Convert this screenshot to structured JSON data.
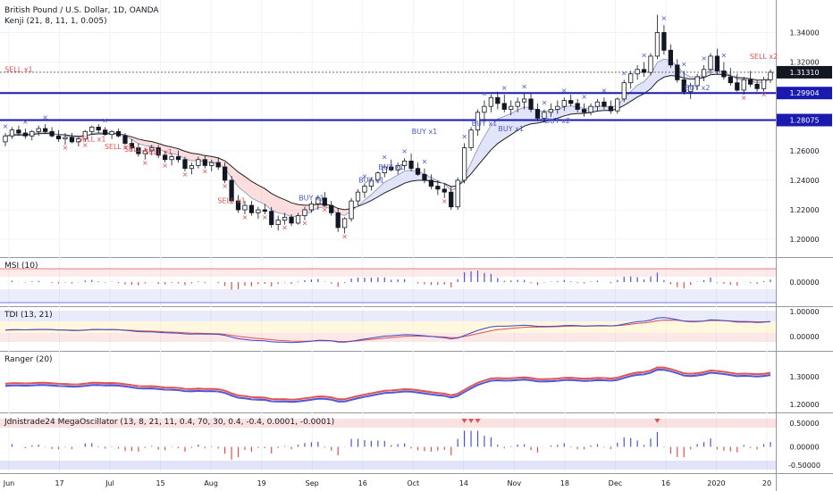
{
  "chart_data": {
    "type": "candlestick-with-indicators",
    "title": "British Pound / U.S. Dollar, 1D, OANDA",
    "subtitle": "Kenji (21, 8, 11, 1, 0.005)",
    "x_ticks": [
      "Jun",
      "17",
      "Jul",
      "15",
      "Aug",
      "19",
      "Sep",
      "16",
      "Oct",
      "14",
      "Nov",
      "18",
      "Dec",
      "16",
      "2020",
      "20"
    ],
    "price_axis": {
      "ticks": [
        "1.34000",
        "1.32000",
        "1.30000",
        "1.28000",
        "1.26000",
        "1.24000",
        "1.22000",
        "1.20000"
      ],
      "ylim": [
        1.188,
        1.362
      ]
    },
    "last_price": "1.31310",
    "levels": [
      "1.29904",
      "1.28075"
    ],
    "signals": [
      {
        "text": "SELL x1"
      },
      {
        "text": "SELL x1"
      },
      {
        "text": "SELL x1"
      },
      {
        "text": "SELL x1"
      },
      {
        "text": "SELL x1"
      },
      {
        "text": "SELL x1"
      },
      {
        "text": "BUY x1"
      },
      {
        "text": "BUY x1"
      },
      {
        "text": "BUY x1"
      },
      {
        "text": "BUY x1"
      },
      {
        "text": "BUY x1"
      },
      {
        "text": "BUY x1"
      },
      {
        "text": "BUY x2"
      },
      {
        "text": "BUY x2"
      },
      {
        "text": "SELL x2"
      }
    ],
    "ohlc": [
      [
        1.266,
        1.272,
        1.263,
        1.27
      ],
      [
        1.27,
        1.276,
        1.268,
        1.274
      ],
      [
        1.274,
        1.277,
        1.27,
        1.272
      ],
      [
        1.272,
        1.275,
        1.268,
        1.27
      ],
      [
        1.27,
        1.274,
        1.267,
        1.273
      ],
      [
        1.273,
        1.277,
        1.27,
        1.275
      ],
      [
        1.275,
        1.278,
        1.272,
        1.273
      ],
      [
        1.273,
        1.276,
        1.269,
        1.27
      ],
      [
        1.27,
        1.274,
        1.266,
        1.268
      ],
      [
        1.268,
        1.272,
        1.264,
        1.269
      ],
      [
        1.269,
        1.272,
        1.265,
        1.266
      ],
      [
        1.266,
        1.27,
        1.263,
        1.268
      ],
      [
        1.268,
        1.274,
        1.266,
        1.273
      ],
      [
        1.273,
        1.277,
        1.271,
        1.276
      ],
      [
        1.276,
        1.278,
        1.272,
        1.274
      ],
      [
        1.274,
        1.276,
        1.27,
        1.271
      ],
      [
        1.271,
        1.274,
        1.268,
        1.273
      ],
      [
        1.273,
        1.275,
        1.269,
        1.27
      ],
      [
        1.27,
        1.272,
        1.264,
        1.265
      ],
      [
        1.265,
        1.268,
        1.26,
        1.262
      ],
      [
        1.262,
        1.265,
        1.256,
        1.258
      ],
      [
        1.258,
        1.262,
        1.254,
        1.26
      ],
      [
        1.26,
        1.264,
        1.257,
        1.262
      ],
      [
        1.262,
        1.264,
        1.255,
        1.257
      ],
      [
        1.257,
        1.26,
        1.252,
        1.254
      ],
      [
        1.254,
        1.258,
        1.25,
        1.256
      ],
      [
        1.256,
        1.26,
        1.252,
        1.254
      ],
      [
        1.254,
        1.256,
        1.246,
        1.248
      ],
      [
        1.248,
        1.252,
        1.244,
        1.25
      ],
      [
        1.25,
        1.256,
        1.248,
        1.254
      ],
      [
        1.254,
        1.257,
        1.248,
        1.25
      ],
      [
        1.25,
        1.254,
        1.246,
        1.252
      ],
      [
        1.252,
        1.255,
        1.247,
        1.249
      ],
      [
        1.249,
        1.252,
        1.238,
        1.24
      ],
      [
        1.24,
        1.243,
        1.224,
        1.226
      ],
      [
        1.226,
        1.23,
        1.218,
        1.22
      ],
      [
        1.22,
        1.226,
        1.217,
        1.223
      ],
      [
        1.223,
        1.226,
        1.216,
        1.218
      ],
      [
        1.218,
        1.222,
        1.214,
        1.22
      ],
      [
        1.22,
        1.224,
        1.217,
        1.219
      ],
      [
        1.219,
        1.222,
        1.208,
        1.21
      ],
      [
        1.21,
        1.216,
        1.206,
        1.213
      ],
      [
        1.213,
        1.218,
        1.21,
        1.215
      ],
      [
        1.215,
        1.217,
        1.209,
        1.211
      ],
      [
        1.211,
        1.218,
        1.21,
        1.216
      ],
      [
        1.216,
        1.222,
        1.213,
        1.22
      ],
      [
        1.22,
        1.226,
        1.218,
        1.224
      ],
      [
        1.224,
        1.23,
        1.22,
        1.228
      ],
      [
        1.228,
        1.232,
        1.222,
        1.223
      ],
      [
        1.223,
        1.226,
        1.216,
        1.218
      ],
      [
        1.218,
        1.221,
        1.205,
        1.208
      ],
      [
        1.208,
        1.215,
        1.204,
        1.214
      ],
      [
        1.214,
        1.228,
        1.212,
        1.226
      ],
      [
        1.226,
        1.234,
        1.223,
        1.232
      ],
      [
        1.232,
        1.238,
        1.228,
        1.236
      ],
      [
        1.236,
        1.242,
        1.233,
        1.24
      ],
      [
        1.24,
        1.246,
        1.238,
        1.245
      ],
      [
        1.245,
        1.251,
        1.242,
        1.249
      ],
      [
        1.249,
        1.254,
        1.246,
        1.247
      ],
      [
        1.247,
        1.252,
        1.244,
        1.25
      ],
      [
        1.25,
        1.255,
        1.247,
        1.253
      ],
      [
        1.253,
        1.258,
        1.246,
        1.248
      ],
      [
        1.248,
        1.252,
        1.243,
        1.244
      ],
      [
        1.244,
        1.248,
        1.238,
        1.24
      ],
      [
        1.24,
        1.244,
        1.234,
        1.236
      ],
      [
        1.236,
        1.24,
        1.23,
        1.234
      ],
      [
        1.234,
        1.238,
        1.228,
        1.232
      ],
      [
        1.232,
        1.236,
        1.22,
        1.222
      ],
      [
        1.222,
        1.242,
        1.22,
        1.24
      ],
      [
        1.24,
        1.265,
        1.238,
        1.262
      ],
      [
        1.262,
        1.276,
        1.26,
        1.274
      ],
      [
        1.274,
        1.288,
        1.27,
        1.286
      ],
      [
        1.286,
        1.294,
        1.28,
        1.29
      ],
      [
        1.29,
        1.298,
        1.286,
        1.296
      ],
      [
        1.296,
        1.3,
        1.288,
        1.292
      ],
      [
        1.292,
        1.298,
        1.286,
        1.288
      ],
      [
        1.288,
        1.294,
        1.284,
        1.29
      ],
      [
        1.29,
        1.296,
        1.286,
        1.293
      ],
      [
        1.293,
        1.299,
        1.288,
        1.295
      ],
      [
        1.295,
        1.299,
        1.286,
        1.288
      ],
      [
        1.288,
        1.292,
        1.28,
        1.282
      ],
      [
        1.282,
        1.288,
        1.279,
        1.286
      ],
      [
        1.286,
        1.292,
        1.283,
        1.288
      ],
      [
        1.288,
        1.294,
        1.285,
        1.29
      ],
      [
        1.29,
        1.296,
        1.287,
        1.294
      ],
      [
        1.294,
        1.298,
        1.29,
        1.292
      ],
      [
        1.292,
        1.295,
        1.286,
        1.288
      ],
      [
        1.288,
        1.292,
        1.283,
        1.286
      ],
      [
        1.286,
        1.292,
        1.284,
        1.29
      ],
      [
        1.29,
        1.295,
        1.287,
        1.293
      ],
      [
        1.293,
        1.296,
        1.288,
        1.29
      ],
      [
        1.29,
        1.294,
        1.285,
        1.287
      ],
      [
        1.287,
        1.296,
        1.285,
        1.295
      ],
      [
        1.295,
        1.308,
        1.293,
        1.306
      ],
      [
        1.306,
        1.314,
        1.302,
        1.312
      ],
      [
        1.312,
        1.318,
        1.308,
        1.315
      ],
      [
        1.315,
        1.32,
        1.31,
        1.313
      ],
      [
        1.313,
        1.326,
        1.311,
        1.324
      ],
      [
        1.324,
        1.352,
        1.322,
        1.34
      ],
      [
        1.34,
        1.345,
        1.325,
        1.328
      ],
      [
        1.328,
        1.332,
        1.316,
        1.318
      ],
      [
        1.318,
        1.322,
        1.306,
        1.308
      ],
      [
        1.308,
        1.314,
        1.298,
        1.3
      ],
      [
        1.3,
        1.306,
        1.295,
        1.304
      ],
      [
        1.304,
        1.312,
        1.301,
        1.31
      ],
      [
        1.31,
        1.318,
        1.307,
        1.315
      ],
      [
        1.315,
        1.326,
        1.312,
        1.324
      ],
      [
        1.324,
        1.329,
        1.312,
        1.314
      ],
      [
        1.314,
        1.32,
        1.308,
        1.31
      ],
      [
        1.31,
        1.316,
        1.304,
        1.306
      ],
      [
        1.306,
        1.312,
        1.3,
        1.301
      ],
      [
        1.301,
        1.31,
        1.298,
        1.308
      ],
      [
        1.308,
        1.314,
        1.303,
        1.305
      ],
      [
        1.305,
        1.308,
        1.3,
        1.302
      ],
      [
        1.302,
        1.31,
        1.3,
        1.308
      ],
      [
        1.308,
        1.315,
        1.306,
        1.3131
      ]
    ]
  }
}
